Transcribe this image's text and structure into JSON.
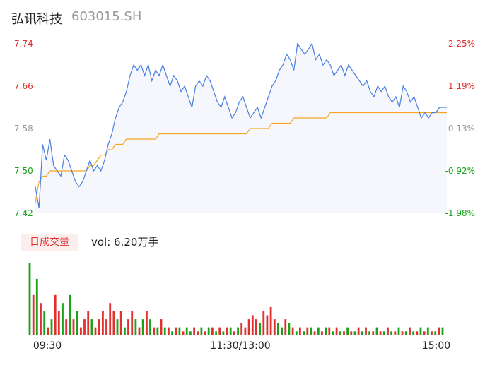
{
  "stock": {
    "name": "弘讯科技",
    "code": "603015.SH"
  },
  "volume": {
    "tag": "日成交量",
    "text": "vol: 6.20万手"
  },
  "colors": {
    "up": "#e03030",
    "down": "#1aa31a",
    "flat": "#999999",
    "price_line": "#4a7fe0",
    "avg_line": "#f5a623"
  },
  "chart_data": [
    {
      "type": "line",
      "title": "",
      "x_ticks": [
        "09:30",
        "11:30/13:00",
        "15:00"
      ],
      "y_ticks_left": [
        "7.74",
        "7.66",
        "7.58",
        "7.50",
        "7.42"
      ],
      "y_ticks_right": [
        "2.25%",
        "1.19%",
        "0.13%",
        "-0.92%",
        "-1.98%"
      ],
      "ylim": [
        7.42,
        7.74
      ],
      "prev_close": 7.57,
      "series": [
        {
          "key": "price",
          "values": [
            7.47,
            7.43,
            7.55,
            7.52,
            7.56,
            7.51,
            7.5,
            7.49,
            7.53,
            7.52,
            7.5,
            7.48,
            7.47,
            7.48,
            7.5,
            7.52,
            7.5,
            7.51,
            7.5,
            7.52,
            7.55,
            7.57,
            7.6,
            7.62,
            7.63,
            7.65,
            7.68,
            7.7,
            7.69,
            7.7,
            7.68,
            7.7,
            7.67,
            7.69,
            7.68,
            7.7,
            7.68,
            7.66,
            7.68,
            7.67,
            7.65,
            7.66,
            7.64,
            7.62,
            7.66,
            7.67,
            7.66,
            7.68,
            7.67,
            7.65,
            7.63,
            7.62,
            7.64,
            7.62,
            7.6,
            7.61,
            7.63,
            7.64,
            7.62,
            7.6,
            7.61,
            7.62,
            7.6,
            7.62,
            7.64,
            7.66,
            7.67,
            7.69,
            7.7,
            7.72,
            7.71,
            7.69,
            7.74,
            7.73,
            7.72,
            7.73,
            7.74,
            7.71,
            7.72,
            7.7,
            7.71,
            7.7,
            7.68,
            7.69,
            7.7,
            7.68,
            7.7,
            7.69,
            7.68,
            7.67,
            7.66,
            7.67,
            7.65,
            7.64,
            7.66,
            7.65,
            7.66,
            7.64,
            7.63,
            7.64,
            7.62,
            7.66,
            7.65,
            7.63,
            7.64,
            7.62,
            7.6,
            7.61,
            7.6,
            7.61,
            7.61,
            7.62,
            7.62,
            7.62
          ]
        },
        {
          "key": "average",
          "values": [
            7.44,
            7.48,
            7.49,
            7.49,
            7.5,
            7.5,
            7.5,
            7.5,
            7.5,
            7.5,
            7.5,
            7.5,
            7.5,
            7.5,
            7.5,
            7.51,
            7.51,
            7.52,
            7.53,
            7.53,
            7.54,
            7.54,
            7.55,
            7.55,
            7.55,
            7.56,
            7.56,
            7.56,
            7.56,
            7.56,
            7.56,
            7.56,
            7.56,
            7.56,
            7.57,
            7.57,
            7.57,
            7.57,
            7.57,
            7.57,
            7.57,
            7.57,
            7.57,
            7.57,
            7.57,
            7.57,
            7.57,
            7.57,
            7.57,
            7.57,
            7.57,
            7.57,
            7.57,
            7.57,
            7.57,
            7.57,
            7.57,
            7.57,
            7.57,
            7.58,
            7.58,
            7.58,
            7.58,
            7.58,
            7.58,
            7.59,
            7.59,
            7.59,
            7.59,
            7.59,
            7.59,
            7.6,
            7.6,
            7.6,
            7.6,
            7.6,
            7.6,
            7.6,
            7.6,
            7.6,
            7.6,
            7.61,
            7.61,
            7.61,
            7.61,
            7.61,
            7.61,
            7.61,
            7.61,
            7.61,
            7.61,
            7.61,
            7.61,
            7.61,
            7.61,
            7.61,
            7.61,
            7.61,
            7.61,
            7.61,
            7.61,
            7.61,
            7.61,
            7.61,
            7.61,
            7.61,
            7.61,
            7.61,
            7.61,
            7.61,
            7.61,
            7.61,
            7.61,
            7.61
          ]
        }
      ]
    },
    {
      "type": "bar",
      "title": "",
      "series": [
        {
          "key": "volume",
          "values": [
            0.9,
            0.5,
            0.7,
            0.4,
            0.3,
            0.1,
            0.2,
            0.5,
            0.3,
            0.4,
            0.2,
            0.5,
            0.2,
            0.3,
            0.1,
            0.2,
            0.3,
            0.2,
            0.1,
            0.2,
            0.3,
            0.2,
            0.4,
            0.3,
            0.2,
            0.3,
            0.1,
            0.2,
            0.3,
            0.2,
            0.1,
            0.2,
            0.3,
            0.2,
            0.1,
            0.1,
            0.2,
            0.1,
            0.1,
            0.05,
            0.1,
            0.1,
            0.05,
            0.1,
            0.05,
            0.1,
            0.05,
            0.1,
            0.05,
            0.1,
            0.1,
            0.05,
            0.1,
            0.05,
            0.1,
            0.1,
            0.05,
            0.1,
            0.15,
            0.1,
            0.2,
            0.25,
            0.2,
            0.15,
            0.3,
            0.25,
            0.35,
            0.2,
            0.15,
            0.1,
            0.2,
            0.15,
            0.1,
            0.05,
            0.1,
            0.05,
            0.1,
            0.1,
            0.05,
            0.1,
            0.05,
            0.1,
            0.1,
            0.05,
            0.1,
            0.05,
            0.05,
            0.1,
            0.05,
            0.05,
            0.1,
            0.05,
            0.1,
            0.05,
            0.05,
            0.1,
            0.05,
            0.05,
            0.1,
            0.05,
            0.05,
            0.1,
            0.05,
            0.05,
            0.1,
            0.05,
            0.05,
            0.1,
            0.05,
            0.1,
            0.05,
            0.05,
            0.1,
            0.1
          ],
          "up": [
            false,
            true,
            false,
            true,
            false,
            true,
            false,
            true,
            true,
            false,
            true,
            false,
            true,
            false,
            true,
            true,
            true,
            false,
            true,
            true,
            true,
            true,
            true,
            true,
            false,
            true,
            false,
            true,
            true,
            false,
            true,
            false,
            true,
            false,
            true,
            false,
            true,
            false,
            true,
            false,
            true,
            false,
            true,
            false,
            false,
            true,
            true,
            false,
            true,
            false,
            true,
            false,
            true,
            false,
            true,
            false,
            true,
            false,
            true,
            true,
            true,
            true,
            true,
            false,
            true,
            true,
            true,
            true,
            false,
            false,
            true,
            false,
            true,
            false,
            true,
            false,
            true,
            false,
            true,
            false,
            true,
            false,
            true,
            false,
            true,
            false,
            true,
            false,
            true,
            false,
            true,
            false,
            true,
            false,
            true,
            false,
            true,
            false,
            true,
            false,
            true,
            false,
            true,
            false,
            true,
            false,
            true,
            false,
            true,
            false,
            true,
            false,
            true,
            false
          ]
        }
      ]
    }
  ]
}
